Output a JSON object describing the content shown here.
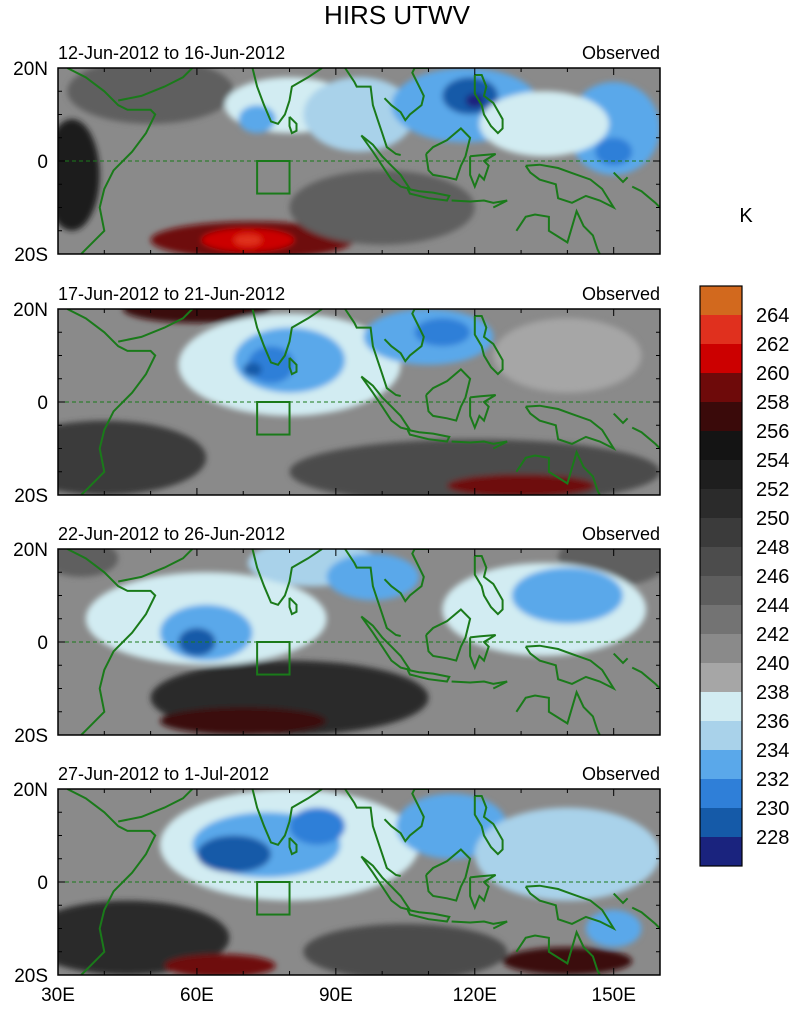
{
  "chart_data": {
    "type": "heatmap",
    "title": "HIRS UTWV",
    "colorbar": {
      "unit": "K",
      "levels": [
        264,
        262,
        260,
        258,
        256,
        254,
        252,
        250,
        248,
        246,
        244,
        242,
        240,
        238,
        236,
        234,
        232,
        230,
        228
      ],
      "colors": [
        "#d2691e",
        "#e0301e",
        "#cc0000",
        "#6e0a0a",
        "#3a0a0a",
        "#141414",
        "#1e1e1e",
        "#2b2b2b",
        "#3b3b3b",
        "#4c4c4c",
        "#5e5e5e",
        "#737373",
        "#8a8a8a",
        "#a6a6a6",
        "#d2ecf2",
        "#a9d2ea",
        "#5aa8ea",
        "#2f7fd8",
        "#155aa8",
        "#1a237e"
      ]
    },
    "x_ticks": [
      {
        "label": "30E",
        "value": 30
      },
      {
        "label": "60E",
        "value": 60
      },
      {
        "label": "90E",
        "value": 90
      },
      {
        "label": "120E",
        "value": 120
      },
      {
        "label": "150E",
        "value": 150
      }
    ],
    "xlim": [
      30,
      160
    ],
    "y_ticks": [
      {
        "label": "20N",
        "value": 20
      },
      {
        "label": "0",
        "value": 0
      },
      {
        "label": "20S",
        "value": -20
      }
    ],
    "ylim": [
      -20,
      20
    ],
    "panels": [
      {
        "left_title": "12-Jun-2012 to 16-Jun-2012",
        "right_title": "Observed",
        "blobs": [
          {
            "lon": 50,
            "lat": 15,
            "rx": 18,
            "ry": 7,
            "value": 246
          },
          {
            "lon": 72,
            "lat": -17,
            "rx": 22,
            "ry": 4,
            "value": 259
          },
          {
            "lon": 71,
            "lat": -17,
            "rx": 10,
            "ry": 2.5,
            "value": 262
          },
          {
            "lon": 71,
            "lat": -17,
            "rx": 3,
            "ry": 1.2,
            "value": 264
          },
          {
            "lon": 33,
            "lat": -3,
            "rx": 6,
            "ry": 12,
            "value": 254
          },
          {
            "lon": 100,
            "lat": -10,
            "rx": 20,
            "ry": 8,
            "value": 246
          },
          {
            "lon": 80,
            "lat": 12,
            "rx": 14,
            "ry": 6,
            "value": 237
          },
          {
            "lon": 73,
            "lat": 9,
            "rx": 4,
            "ry": 3,
            "value": 233
          },
          {
            "lon": 95,
            "lat": 10,
            "rx": 12,
            "ry": 8,
            "value": 235
          },
          {
            "lon": 118,
            "lat": 12,
            "rx": 16,
            "ry": 8,
            "value": 233
          },
          {
            "lon": 119,
            "lat": 14,
            "rx": 6,
            "ry": 4,
            "value": 230
          },
          {
            "lon": 120,
            "lat": 13,
            "rx": 2,
            "ry": 1.5,
            "value": 228
          },
          {
            "lon": 150,
            "lat": 7,
            "rx": 10,
            "ry": 10,
            "value": 234
          },
          {
            "lon": 150,
            "lat": 2,
            "rx": 4,
            "ry": 3,
            "value": 231
          },
          {
            "lon": 135,
            "lat": 8,
            "rx": 14,
            "ry": 7,
            "value": 237
          }
        ]
      },
      {
        "left_title": "17-Jun-2012 to 21-Jun-2012",
        "right_title": "Observed",
        "blobs": [
          {
            "lon": 40,
            "lat": -12,
            "rx": 22,
            "ry": 8,
            "value": 250
          },
          {
            "lon": 120,
            "lat": -15,
            "rx": 40,
            "ry": 7,
            "value": 248
          },
          {
            "lon": 130,
            "lat": -18,
            "rx": 16,
            "ry": 2.5,
            "value": 259
          },
          {
            "lon": 60,
            "lat": 20,
            "rx": 16,
            "ry": 3,
            "value": 257
          },
          {
            "lon": 140,
            "lat": 10,
            "rx": 16,
            "ry": 8,
            "value": 240
          },
          {
            "lon": 80,
            "lat": 8,
            "rx": 24,
            "ry": 11,
            "value": 237
          },
          {
            "lon": 80,
            "lat": 9,
            "rx": 12,
            "ry": 7,
            "value": 233
          },
          {
            "lon": 76,
            "lat": 8,
            "rx": 5,
            "ry": 4,
            "value": 231
          },
          {
            "lon": 72,
            "lat": 7,
            "rx": 2,
            "ry": 1.5,
            "value": 229
          },
          {
            "lon": 110,
            "lat": 14,
            "rx": 14,
            "ry": 6,
            "value": 234
          },
          {
            "lon": 113,
            "lat": 15,
            "rx": 6,
            "ry": 3,
            "value": 231
          }
        ]
      },
      {
        "left_title": "22-Jun-2012 to 26-Jun-2012",
        "right_title": "Observed",
        "blobs": [
          {
            "lon": 80,
            "lat": -12,
            "rx": 30,
            "ry": 8,
            "value": 252
          },
          {
            "lon": 70,
            "lat": -17,
            "rx": 18,
            "ry": 3,
            "value": 258
          },
          {
            "lon": 150,
            "lat": 18,
            "rx": 12,
            "ry": 6,
            "value": 246
          },
          {
            "lon": 35,
            "lat": 18,
            "rx": 8,
            "ry": 4,
            "value": 245
          },
          {
            "lon": 62,
            "lat": 5,
            "rx": 26,
            "ry": 10,
            "value": 237
          },
          {
            "lon": 62,
            "lat": 2,
            "rx": 10,
            "ry": 6,
            "value": 233
          },
          {
            "lon": 60,
            "lat": 0,
            "rx": 4,
            "ry": 3,
            "value": 230
          },
          {
            "lon": 85,
            "lat": 17,
            "rx": 14,
            "ry": 5,
            "value": 236
          },
          {
            "lon": 98,
            "lat": 14,
            "rx": 10,
            "ry": 5,
            "value": 234
          },
          {
            "lon": 135,
            "lat": 7,
            "rx": 22,
            "ry": 10,
            "value": 237
          },
          {
            "lon": 140,
            "lat": 10,
            "rx": 12,
            "ry": 6,
            "value": 234
          }
        ]
      },
      {
        "left_title": "27-Jun-2012 to 1-Jul-2012",
        "right_title": "Observed",
        "blobs": [
          {
            "lon": 45,
            "lat": -12,
            "rx": 22,
            "ry": 8,
            "value": 252
          },
          {
            "lon": 65,
            "lat": -18,
            "rx": 12,
            "ry": 2.5,
            "value": 260
          },
          {
            "lon": 140,
            "lat": -17,
            "rx": 14,
            "ry": 3,
            "value": 258
          },
          {
            "lon": 105,
            "lat": -15,
            "rx": 22,
            "ry": 6,
            "value": 248
          },
          {
            "lon": 80,
            "lat": 8,
            "rx": 28,
            "ry": 12,
            "value": 237
          },
          {
            "lon": 75,
            "lat": 8,
            "rx": 16,
            "ry": 7,
            "value": 233
          },
          {
            "lon": 68,
            "lat": 6,
            "rx": 8,
            "ry": 4,
            "value": 230
          },
          {
            "lon": 86,
            "lat": 12,
            "rx": 6,
            "ry": 4,
            "value": 231
          },
          {
            "lon": 115,
            "lat": 12,
            "rx": 12,
            "ry": 7,
            "value": 234
          },
          {
            "lon": 140,
            "lat": 6,
            "rx": 20,
            "ry": 10,
            "value": 236
          },
          {
            "lon": 150,
            "lat": -10,
            "rx": 6,
            "ry": 4,
            "value": 234
          }
        ]
      }
    ]
  }
}
